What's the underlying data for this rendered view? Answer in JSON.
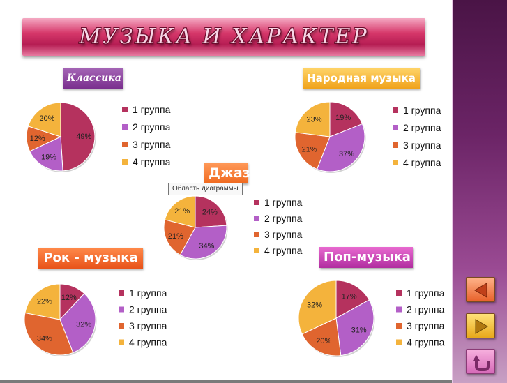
{
  "title": "МУЗЫКА И ХАРАКТЕР",
  "tooltip": "Область диаграммы",
  "colors": {
    "group1": "#b5325e",
    "group2": "#b35fc7",
    "group3": "#e0652f",
    "group4": "#f4b33c"
  },
  "nav": {
    "prev_icon": "triangle-left-icon",
    "next_icon": "triangle-right-icon",
    "return_icon": "return-arrow-icon"
  },
  "chart_data": [
    {
      "type": "pie",
      "title": "Классика",
      "categories": [
        "1 группа",
        "2 группа",
        "3 группа",
        "4 группа"
      ],
      "values": [
        49,
        19,
        12,
        20
      ],
      "labels": [
        "49%",
        "19%",
        "12%",
        "20%"
      ],
      "legend": "right"
    },
    {
      "type": "pie",
      "title": "Народная музыка",
      "categories": [
        "1 группа",
        "2 группа",
        "3 группа",
        "4 группа"
      ],
      "values": [
        19,
        37,
        21,
        23
      ],
      "labels": [
        "19%",
        "37%",
        "21%",
        "23%"
      ],
      "legend": "right"
    },
    {
      "type": "pie",
      "title": "Джаз",
      "categories": [
        "1 группа",
        "2 группа",
        "3 группа",
        "4 группа"
      ],
      "values": [
        24,
        34,
        21,
        21
      ],
      "labels": [
        "24%",
        "34%",
        "21%",
        "21%"
      ],
      "legend": "right"
    },
    {
      "type": "pie",
      "title": "Рок - музыка",
      "categories": [
        "1 группа",
        "2 группа",
        "3 группа",
        "4 группа"
      ],
      "values": [
        12,
        32,
        34,
        22
      ],
      "labels": [
        "12%",
        "32%",
        "34%",
        "22%"
      ],
      "legend": "right"
    },
    {
      "type": "pie",
      "title": "Поп-музыка",
      "categories": [
        "1 группа",
        "2 группа",
        "3 группа",
        "4 группа"
      ],
      "values": [
        17,
        31,
        20,
        32
      ],
      "labels": [
        "17%",
        "31%",
        "20%",
        "32%"
      ],
      "legend": "right"
    }
  ]
}
